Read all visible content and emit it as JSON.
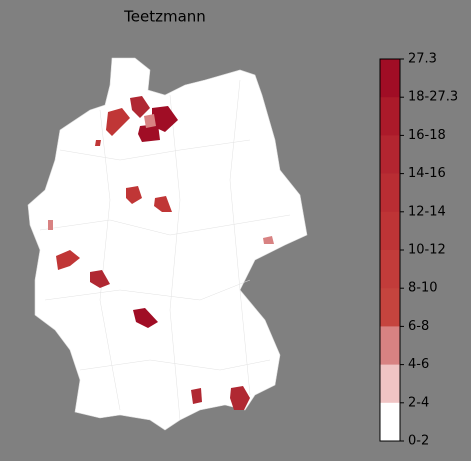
{
  "title": "Teetzmann",
  "colorbar": {
    "labels": [
      "27.3",
      "18-27.3",
      "16-18",
      "14-16",
      "12-14",
      "10-12",
      "8-10",
      "6-8",
      "4-6",
      "2-4",
      "0-2"
    ],
    "colors": [
      "#a00d25",
      "#ab1a2a",
      "#b32530",
      "#b92d33",
      "#be3436",
      "#c23c3a",
      "#c5443e",
      "#d88282",
      "#f0c4c4",
      "#ffffff"
    ]
  }
}
